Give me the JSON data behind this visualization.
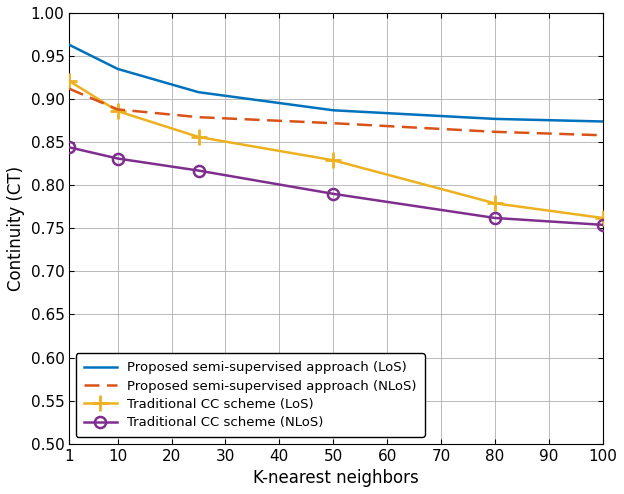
{
  "x": [
    1,
    10,
    25,
    50,
    80,
    100
  ],
  "proposed_los": [
    0.963,
    0.935,
    0.908,
    0.887,
    0.877,
    0.874
  ],
  "proposed_nlos": [
    0.912,
    0.888,
    0.879,
    0.872,
    0.862,
    0.858
  ],
  "traditional_los": [
    0.921,
    0.886,
    0.856,
    0.829,
    0.779,
    0.762
  ],
  "traditional_nlos": [
    0.844,
    0.831,
    0.817,
    0.79,
    0.762,
    0.754
  ],
  "color_proposed_los": "#0072BD",
  "color_proposed_nlos": "#D95319",
  "color_traditional_los": "#EDB120",
  "color_traditional_nlos": "#7E2F8E",
  "xlabel": "K-nearest neighbors",
  "ylabel": "Continuity (CT)",
  "ylim": [
    0.5,
    1.0
  ],
  "xlim": [
    1,
    100
  ],
  "yticks": [
    0.5,
    0.55,
    0.6,
    0.65,
    0.7,
    0.75,
    0.8,
    0.85,
    0.9,
    0.95,
    1.0
  ],
  "xticks": [
    1,
    10,
    20,
    30,
    40,
    50,
    60,
    70,
    80,
    90,
    100
  ],
  "legend_proposed_los": "Proposed semi-supervised approach (LoS)",
  "legend_proposed_nlos": "Proposed semi-supervised approach (NLoS)",
  "legend_traditional_los": "Traditional CC scheme (LoS)",
  "legend_traditional_nlos": "Traditional CC scheme (NLoS)",
  "figsize": [
    6.24,
    4.94
  ],
  "dpi": 100,
  "grid_color": "#b0b0b0",
  "grid_linewidth": 0.6,
  "line_width": 1.8,
  "font_size_ticks": 11,
  "font_size_labels": 12,
  "font_size_legend": 9.5
}
